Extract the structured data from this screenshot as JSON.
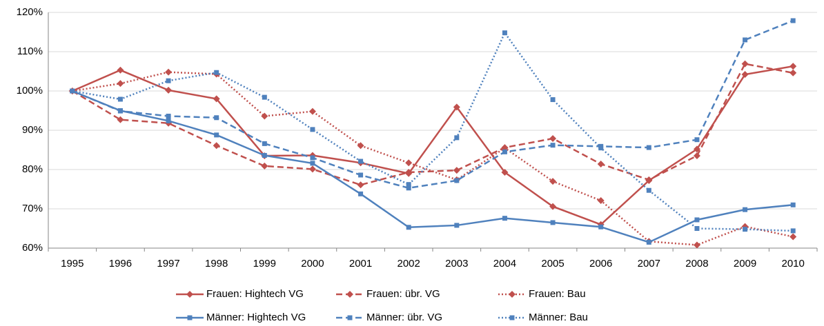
{
  "chart_data": {
    "type": "line",
    "categories": [
      "1995",
      "1996",
      "1997",
      "1998",
      "1999",
      "2000",
      "2001",
      "2002",
      "2003",
      "2004",
      "2005",
      "2006",
      "2007",
      "2008",
      "2009",
      "2010"
    ],
    "ylim": [
      60,
      120
    ],
    "yticks": [
      {
        "value": 60,
        "label": "60%"
      },
      {
        "value": 70,
        "label": "70%"
      },
      {
        "value": 80,
        "label": "80%"
      },
      {
        "value": 90,
        "label": "90%"
      },
      {
        "value": 100,
        "label": "100%"
      },
      {
        "value": 110,
        "label": "110%"
      },
      {
        "value": 120,
        "label": "120%"
      }
    ],
    "grid": true,
    "legend": "bottom",
    "series": [
      {
        "name": "Frauen: Hightech VG",
        "color": "#c0504d",
        "dash": "solid",
        "marker": "diamond",
        "values": [
          100,
          105.3,
          100.2,
          98,
          83.5,
          83.6,
          81.7,
          79,
          95.9,
          79.3,
          70.6,
          66,
          77.2,
          85.2,
          104.2,
          106.3
        ]
      },
      {
        "name": "Frauen: übr. VG",
        "color": "#c0504d",
        "dash": "dashed",
        "marker": "diamond",
        "values": [
          100,
          92.7,
          91.8,
          86.1,
          80.9,
          80.1,
          76.1,
          79.3,
          79.8,
          85.6,
          87.9,
          81.4,
          77.4,
          83.5,
          106.9,
          104.6
        ]
      },
      {
        "name": "Frauen: Bau",
        "color": "#c0504d",
        "dash": "dotted",
        "marker": "diamond",
        "values": [
          100,
          101.9,
          104.8,
          104.3,
          93.6,
          94.8,
          86.1,
          81.7,
          77.4,
          85.5,
          77,
          72.1,
          61.7,
          60.8,
          65.5,
          62.9
        ]
      },
      {
        "name": "Männer: Hightech VG",
        "color": "#4f81bd",
        "dash": "solid",
        "marker": "square",
        "values": [
          100,
          95,
          92.4,
          88.8,
          83.6,
          81.6,
          73.8,
          65.3,
          65.8,
          67.6,
          66.5,
          65.4,
          61.5,
          67.2,
          69.8,
          71
        ]
      },
      {
        "name": "Männer: übr. VG",
        "color": "#4f81bd",
        "dash": "dashed",
        "marker": "square",
        "values": [
          100,
          94.9,
          93.6,
          93.2,
          86.6,
          83,
          78.6,
          75.3,
          77.2,
          84.5,
          86.2,
          85.9,
          85.6,
          87.6,
          113,
          117.9
        ]
      },
      {
        "name": "Männer: Bau",
        "color": "#4f81bd",
        "dash": "dotted",
        "marker": "square",
        "values": [
          100,
          97.9,
          102.6,
          104.7,
          98.4,
          90.2,
          82.1,
          76.2,
          88.1,
          114.8,
          97.8,
          85.5,
          74.7,
          65,
          64.8,
          64.4
        ]
      }
    ]
  }
}
